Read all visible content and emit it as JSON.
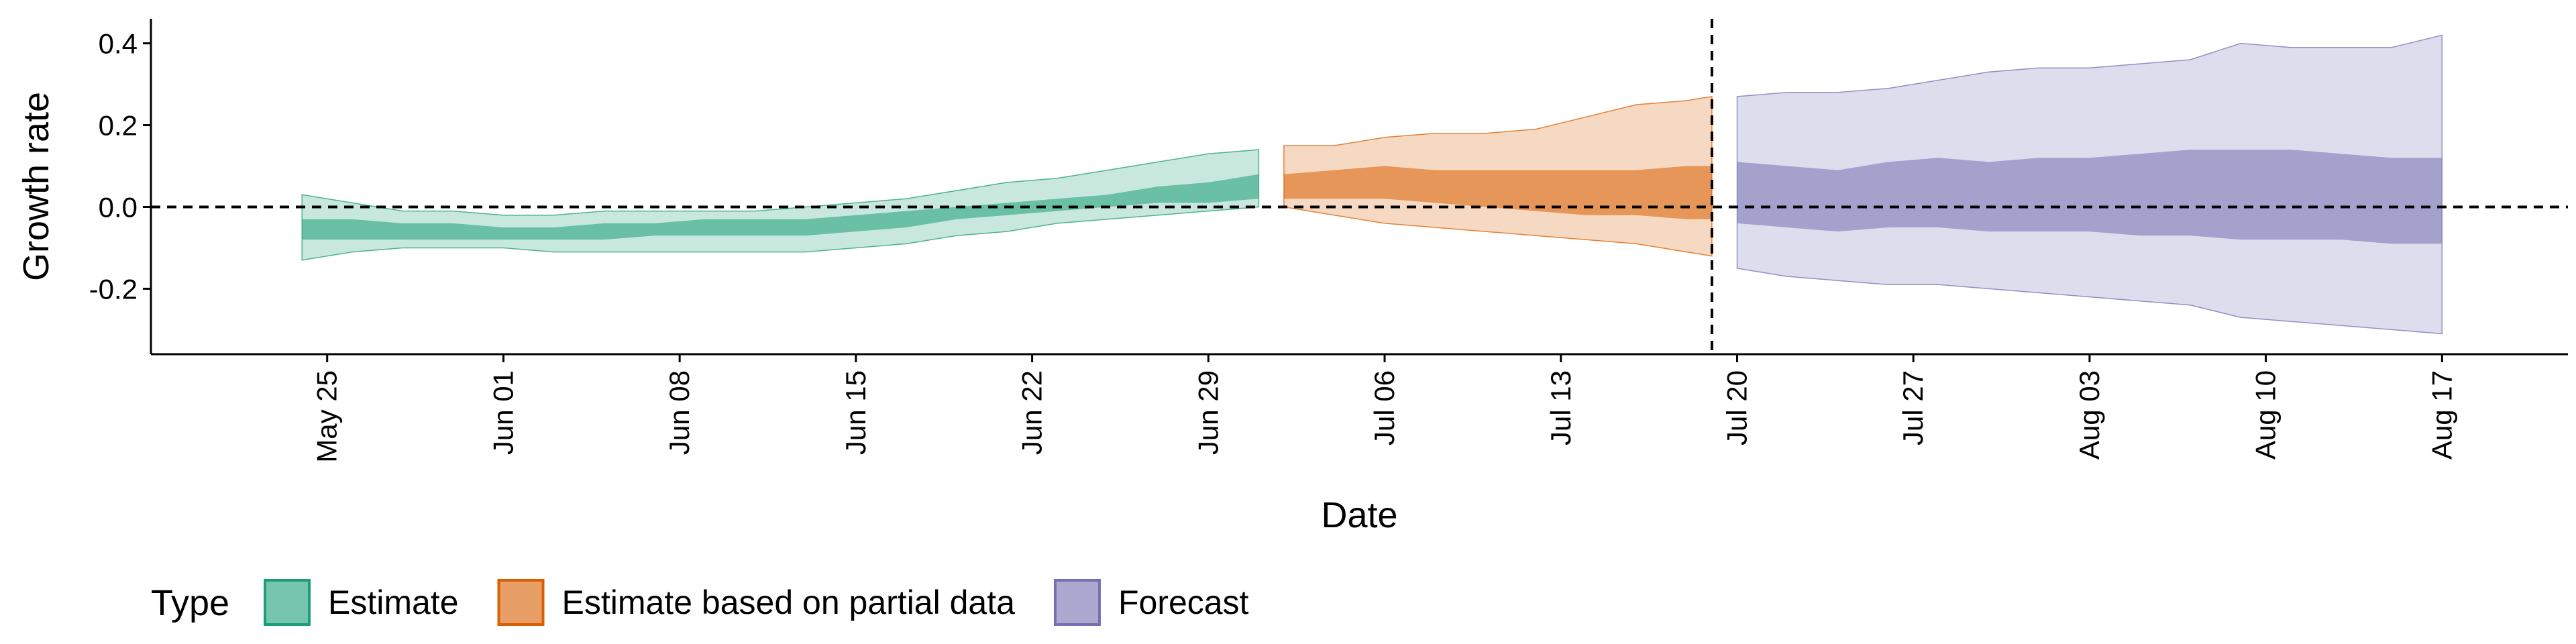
{
  "chart_data": {
    "type": "area",
    "xlabel": "Date",
    "ylabel": "Growth rate",
    "x_ticks": [
      "May 25",
      "Jun 01",
      "Jun 08",
      "Jun 15",
      "Jun 22",
      "Jun 29",
      "Jul 06",
      "Jul 13",
      "Jul 20",
      "Jul 27",
      "Aug 03",
      "Aug 10",
      "Aug 17"
    ],
    "y_ticks": [
      "-0.2",
      "0.0",
      "0.2",
      "0.4"
    ],
    "xlim": [
      "2020-05-18",
      "2020-08-22"
    ],
    "ylim": [
      -0.36,
      0.46
    ],
    "grid": false,
    "reference_lines": {
      "y": 0,
      "x": "2020-07-19"
    },
    "legend": {
      "title": "Type",
      "position": "bottom-left",
      "items": [
        "Estimate",
        "Estimate based on partial data",
        "Forecast"
      ]
    },
    "series": [
      {
        "name": "Estimate",
        "color": "#1b9e77",
        "x": [
          "2020-05-24",
          "2020-05-26",
          "2020-05-28",
          "2020-05-30",
          "2020-06-01",
          "2020-06-03",
          "2020-06-05",
          "2020-06-07",
          "2020-06-09",
          "2020-06-11",
          "2020-06-13",
          "2020-06-15",
          "2020-06-17",
          "2020-06-19",
          "2020-06-21",
          "2020-06-23",
          "2020-06-25",
          "2020-06-27",
          "2020-06-29",
          "2020-07-01"
        ],
        "outer_upper": [
          0.03,
          0.01,
          -0.01,
          -0.01,
          -0.02,
          -0.02,
          -0.01,
          -0.01,
          -0.01,
          -0.01,
          0.0,
          0.01,
          0.02,
          0.04,
          0.06,
          0.07,
          0.09,
          0.11,
          0.13,
          0.14
        ],
        "inner_upper": [
          -0.03,
          -0.03,
          -0.04,
          -0.04,
          -0.05,
          -0.05,
          -0.04,
          -0.04,
          -0.03,
          -0.03,
          -0.03,
          -0.02,
          -0.01,
          0.0,
          0.01,
          0.02,
          0.03,
          0.05,
          0.06,
          0.08
        ],
        "inner_lower": [
          -0.08,
          -0.08,
          -0.08,
          -0.08,
          -0.08,
          -0.08,
          -0.08,
          -0.07,
          -0.07,
          -0.07,
          -0.07,
          -0.06,
          -0.05,
          -0.03,
          -0.02,
          -0.01,
          0.0,
          0.01,
          0.01,
          0.02
        ],
        "outer_lower": [
          -0.13,
          -0.11,
          -0.1,
          -0.1,
          -0.1,
          -0.11,
          -0.11,
          -0.11,
          -0.11,
          -0.11,
          -0.11,
          -0.1,
          -0.09,
          -0.07,
          -0.06,
          -0.04,
          -0.03,
          -0.02,
          -0.01,
          0.0
        ]
      },
      {
        "name": "Estimate based on partial data",
        "color": "#d95f02",
        "x": [
          "2020-07-02",
          "2020-07-04",
          "2020-07-06",
          "2020-07-08",
          "2020-07-10",
          "2020-07-12",
          "2020-07-14",
          "2020-07-16",
          "2020-07-18",
          "2020-07-19"
        ],
        "outer_upper": [
          0.15,
          0.15,
          0.17,
          0.18,
          0.18,
          0.19,
          0.22,
          0.25,
          0.26,
          0.27
        ],
        "inner_upper": [
          0.08,
          0.09,
          0.1,
          0.09,
          0.09,
          0.09,
          0.09,
          0.09,
          0.1,
          0.1
        ],
        "inner_lower": [
          0.02,
          0.02,
          0.02,
          0.01,
          0.0,
          -0.01,
          -0.02,
          -0.02,
          -0.03,
          -0.03
        ],
        "outer_lower": [
          0.0,
          -0.02,
          -0.04,
          -0.05,
          -0.06,
          -0.07,
          -0.08,
          -0.09,
          -0.11,
          -0.12
        ]
      },
      {
        "name": "Forecast",
        "color": "#7570b3",
        "x": [
          "2020-07-20",
          "2020-07-22",
          "2020-07-24",
          "2020-07-26",
          "2020-07-28",
          "2020-07-30",
          "2020-08-01",
          "2020-08-03",
          "2020-08-05",
          "2020-08-07",
          "2020-08-09",
          "2020-08-11",
          "2020-08-13",
          "2020-08-15",
          "2020-08-17"
        ],
        "outer_upper": [
          0.27,
          0.28,
          0.28,
          0.29,
          0.31,
          0.33,
          0.34,
          0.34,
          0.35,
          0.36,
          0.4,
          0.39,
          0.39,
          0.39,
          0.42
        ],
        "inner_upper": [
          0.11,
          0.1,
          0.09,
          0.11,
          0.12,
          0.11,
          0.12,
          0.12,
          0.13,
          0.14,
          0.14,
          0.14,
          0.13,
          0.12,
          0.12
        ],
        "inner_lower": [
          -0.04,
          -0.05,
          -0.06,
          -0.05,
          -0.05,
          -0.06,
          -0.06,
          -0.06,
          -0.07,
          -0.07,
          -0.08,
          -0.08,
          -0.08,
          -0.09,
          -0.09
        ],
        "outer_lower": [
          -0.15,
          -0.17,
          -0.18,
          -0.19,
          -0.19,
          -0.2,
          -0.21,
          -0.22,
          -0.23,
          -0.24,
          -0.27,
          -0.28,
          -0.29,
          -0.3,
          -0.31
        ]
      }
    ]
  }
}
